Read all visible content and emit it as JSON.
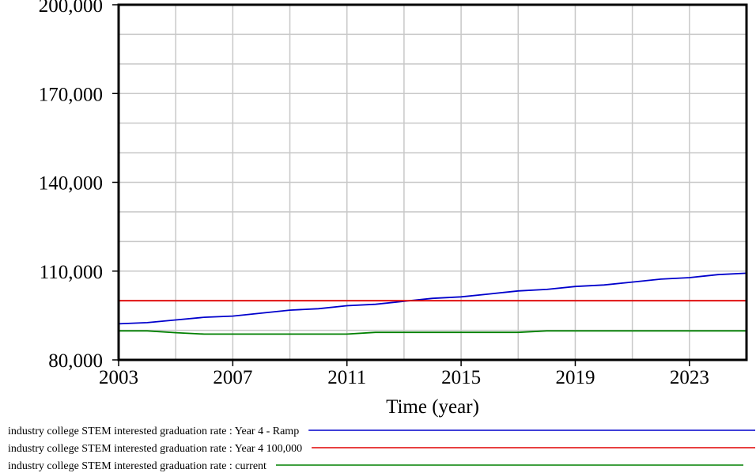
{
  "chart_data": {
    "type": "line",
    "xlabel": "Time (year)",
    "ylabel": "",
    "xlim": [
      2003,
      2025
    ],
    "ylim": [
      80000,
      200000
    ],
    "x_ticks": [
      2003,
      2007,
      2011,
      2015,
      2019,
      2023
    ],
    "x_tick_labels": [
      "2003",
      "2007",
      "2011",
      "2015",
      "2019",
      "2023"
    ],
    "y_ticks": [
      80000,
      110000,
      140000,
      170000,
      200000
    ],
    "y_tick_labels": [
      "80,000",
      "110,000",
      "140,000",
      "170,000",
      "200,000"
    ],
    "grid": true,
    "legend_position": "bottom",
    "x": [
      2003,
      2004,
      2005,
      2006,
      2007,
      2008,
      2009,
      2010,
      2011,
      2012,
      2013,
      2014,
      2015,
      2016,
      2017,
      2018,
      2019,
      2020,
      2021,
      2022,
      2023,
      2024,
      2025
    ],
    "series": [
      {
        "name": "industry college STEM interested graduation rate : Year 4 - Ramp",
        "color": "#0000cc",
        "values": [
          92200,
          92600,
          93500,
          94400,
          94800,
          95800,
          96800,
          97300,
          98300,
          98800,
          99800,
          100800,
          101300,
          102300,
          103300,
          103800,
          104800,
          105300,
          106300,
          107300,
          107800,
          108800,
          109300
        ]
      },
      {
        "name": "industry college STEM interested graduation rate : Year 4 100,000",
        "color": "#e00000",
        "values": [
          100000,
          100000,
          100000,
          100000,
          100000,
          100000,
          100000,
          100000,
          100000,
          100000,
          100000,
          100000,
          100000,
          100000,
          100000,
          100000,
          100000,
          100000,
          100000,
          100000,
          100000,
          100000,
          100000
        ]
      },
      {
        "name": "industry college STEM interested graduation rate : current",
        "color": "#008000",
        "values": [
          89800,
          89800,
          89200,
          88700,
          88700,
          88700,
          88700,
          88700,
          88700,
          89300,
          89300,
          89300,
          89300,
          89300,
          89300,
          89800,
          89800,
          89800,
          89800,
          89800,
          89800,
          89800,
          89800
        ]
      }
    ]
  }
}
